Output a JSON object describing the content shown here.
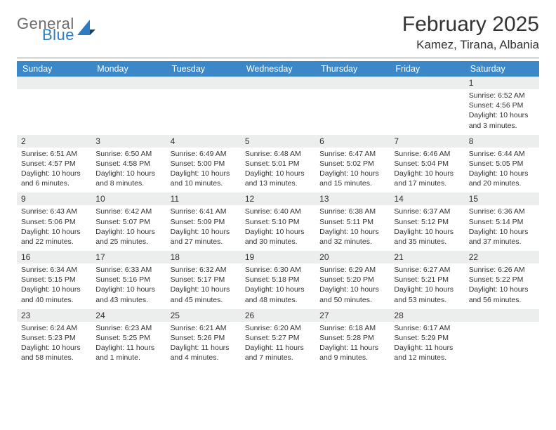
{
  "logo": {
    "general": "General",
    "blue": "Blue"
  },
  "title": "February 2025",
  "location": "Kamez, Tirana, Albania",
  "weekdays": [
    "Sunday",
    "Monday",
    "Tuesday",
    "Wednesday",
    "Thursday",
    "Friday",
    "Saturday"
  ],
  "colors": {
    "header_bg": "#3b87c8",
    "header_text": "#ffffff",
    "daynum_bg": "#eceded",
    "text": "#333333",
    "logo_blue": "#2f7bbf",
    "logo_gray": "#6b6b6b"
  },
  "fonts": {
    "title_size_pt": 22,
    "location_size_pt": 13,
    "weekday_size_pt": 9,
    "body_size_pt": 8
  },
  "weeks": [
    [
      {
        "n": "",
        "sr": "",
        "ss": "",
        "dl": ""
      },
      {
        "n": "",
        "sr": "",
        "ss": "",
        "dl": ""
      },
      {
        "n": "",
        "sr": "",
        "ss": "",
        "dl": ""
      },
      {
        "n": "",
        "sr": "",
        "ss": "",
        "dl": ""
      },
      {
        "n": "",
        "sr": "",
        "ss": "",
        "dl": ""
      },
      {
        "n": "",
        "sr": "",
        "ss": "",
        "dl": ""
      },
      {
        "n": "1",
        "sr": "Sunrise: 6:52 AM",
        "ss": "Sunset: 4:56 PM",
        "dl": "Daylight: 10 hours and 3 minutes."
      }
    ],
    [
      {
        "n": "2",
        "sr": "Sunrise: 6:51 AM",
        "ss": "Sunset: 4:57 PM",
        "dl": "Daylight: 10 hours and 6 minutes."
      },
      {
        "n": "3",
        "sr": "Sunrise: 6:50 AM",
        "ss": "Sunset: 4:58 PM",
        "dl": "Daylight: 10 hours and 8 minutes."
      },
      {
        "n": "4",
        "sr": "Sunrise: 6:49 AM",
        "ss": "Sunset: 5:00 PM",
        "dl": "Daylight: 10 hours and 10 minutes."
      },
      {
        "n": "5",
        "sr": "Sunrise: 6:48 AM",
        "ss": "Sunset: 5:01 PM",
        "dl": "Daylight: 10 hours and 13 minutes."
      },
      {
        "n": "6",
        "sr": "Sunrise: 6:47 AM",
        "ss": "Sunset: 5:02 PM",
        "dl": "Daylight: 10 hours and 15 minutes."
      },
      {
        "n": "7",
        "sr": "Sunrise: 6:46 AM",
        "ss": "Sunset: 5:04 PM",
        "dl": "Daylight: 10 hours and 17 minutes."
      },
      {
        "n": "8",
        "sr": "Sunrise: 6:44 AM",
        "ss": "Sunset: 5:05 PM",
        "dl": "Daylight: 10 hours and 20 minutes."
      }
    ],
    [
      {
        "n": "9",
        "sr": "Sunrise: 6:43 AM",
        "ss": "Sunset: 5:06 PM",
        "dl": "Daylight: 10 hours and 22 minutes."
      },
      {
        "n": "10",
        "sr": "Sunrise: 6:42 AM",
        "ss": "Sunset: 5:07 PM",
        "dl": "Daylight: 10 hours and 25 minutes."
      },
      {
        "n": "11",
        "sr": "Sunrise: 6:41 AM",
        "ss": "Sunset: 5:09 PM",
        "dl": "Daylight: 10 hours and 27 minutes."
      },
      {
        "n": "12",
        "sr": "Sunrise: 6:40 AM",
        "ss": "Sunset: 5:10 PM",
        "dl": "Daylight: 10 hours and 30 minutes."
      },
      {
        "n": "13",
        "sr": "Sunrise: 6:38 AM",
        "ss": "Sunset: 5:11 PM",
        "dl": "Daylight: 10 hours and 32 minutes."
      },
      {
        "n": "14",
        "sr": "Sunrise: 6:37 AM",
        "ss": "Sunset: 5:12 PM",
        "dl": "Daylight: 10 hours and 35 minutes."
      },
      {
        "n": "15",
        "sr": "Sunrise: 6:36 AM",
        "ss": "Sunset: 5:14 PM",
        "dl": "Daylight: 10 hours and 37 minutes."
      }
    ],
    [
      {
        "n": "16",
        "sr": "Sunrise: 6:34 AM",
        "ss": "Sunset: 5:15 PM",
        "dl": "Daylight: 10 hours and 40 minutes."
      },
      {
        "n": "17",
        "sr": "Sunrise: 6:33 AM",
        "ss": "Sunset: 5:16 PM",
        "dl": "Daylight: 10 hours and 43 minutes."
      },
      {
        "n": "18",
        "sr": "Sunrise: 6:32 AM",
        "ss": "Sunset: 5:17 PM",
        "dl": "Daylight: 10 hours and 45 minutes."
      },
      {
        "n": "19",
        "sr": "Sunrise: 6:30 AM",
        "ss": "Sunset: 5:18 PM",
        "dl": "Daylight: 10 hours and 48 minutes."
      },
      {
        "n": "20",
        "sr": "Sunrise: 6:29 AM",
        "ss": "Sunset: 5:20 PM",
        "dl": "Daylight: 10 hours and 50 minutes."
      },
      {
        "n": "21",
        "sr": "Sunrise: 6:27 AM",
        "ss": "Sunset: 5:21 PM",
        "dl": "Daylight: 10 hours and 53 minutes."
      },
      {
        "n": "22",
        "sr": "Sunrise: 6:26 AM",
        "ss": "Sunset: 5:22 PM",
        "dl": "Daylight: 10 hours and 56 minutes."
      }
    ],
    [
      {
        "n": "23",
        "sr": "Sunrise: 6:24 AM",
        "ss": "Sunset: 5:23 PM",
        "dl": "Daylight: 10 hours and 58 minutes."
      },
      {
        "n": "24",
        "sr": "Sunrise: 6:23 AM",
        "ss": "Sunset: 5:25 PM",
        "dl": "Daylight: 11 hours and 1 minute."
      },
      {
        "n": "25",
        "sr": "Sunrise: 6:21 AM",
        "ss": "Sunset: 5:26 PM",
        "dl": "Daylight: 11 hours and 4 minutes."
      },
      {
        "n": "26",
        "sr": "Sunrise: 6:20 AM",
        "ss": "Sunset: 5:27 PM",
        "dl": "Daylight: 11 hours and 7 minutes."
      },
      {
        "n": "27",
        "sr": "Sunrise: 6:18 AM",
        "ss": "Sunset: 5:28 PM",
        "dl": "Daylight: 11 hours and 9 minutes."
      },
      {
        "n": "28",
        "sr": "Sunrise: 6:17 AM",
        "ss": "Sunset: 5:29 PM",
        "dl": "Daylight: 11 hours and 12 minutes."
      },
      {
        "n": "",
        "sr": "",
        "ss": "",
        "dl": ""
      }
    ]
  ]
}
